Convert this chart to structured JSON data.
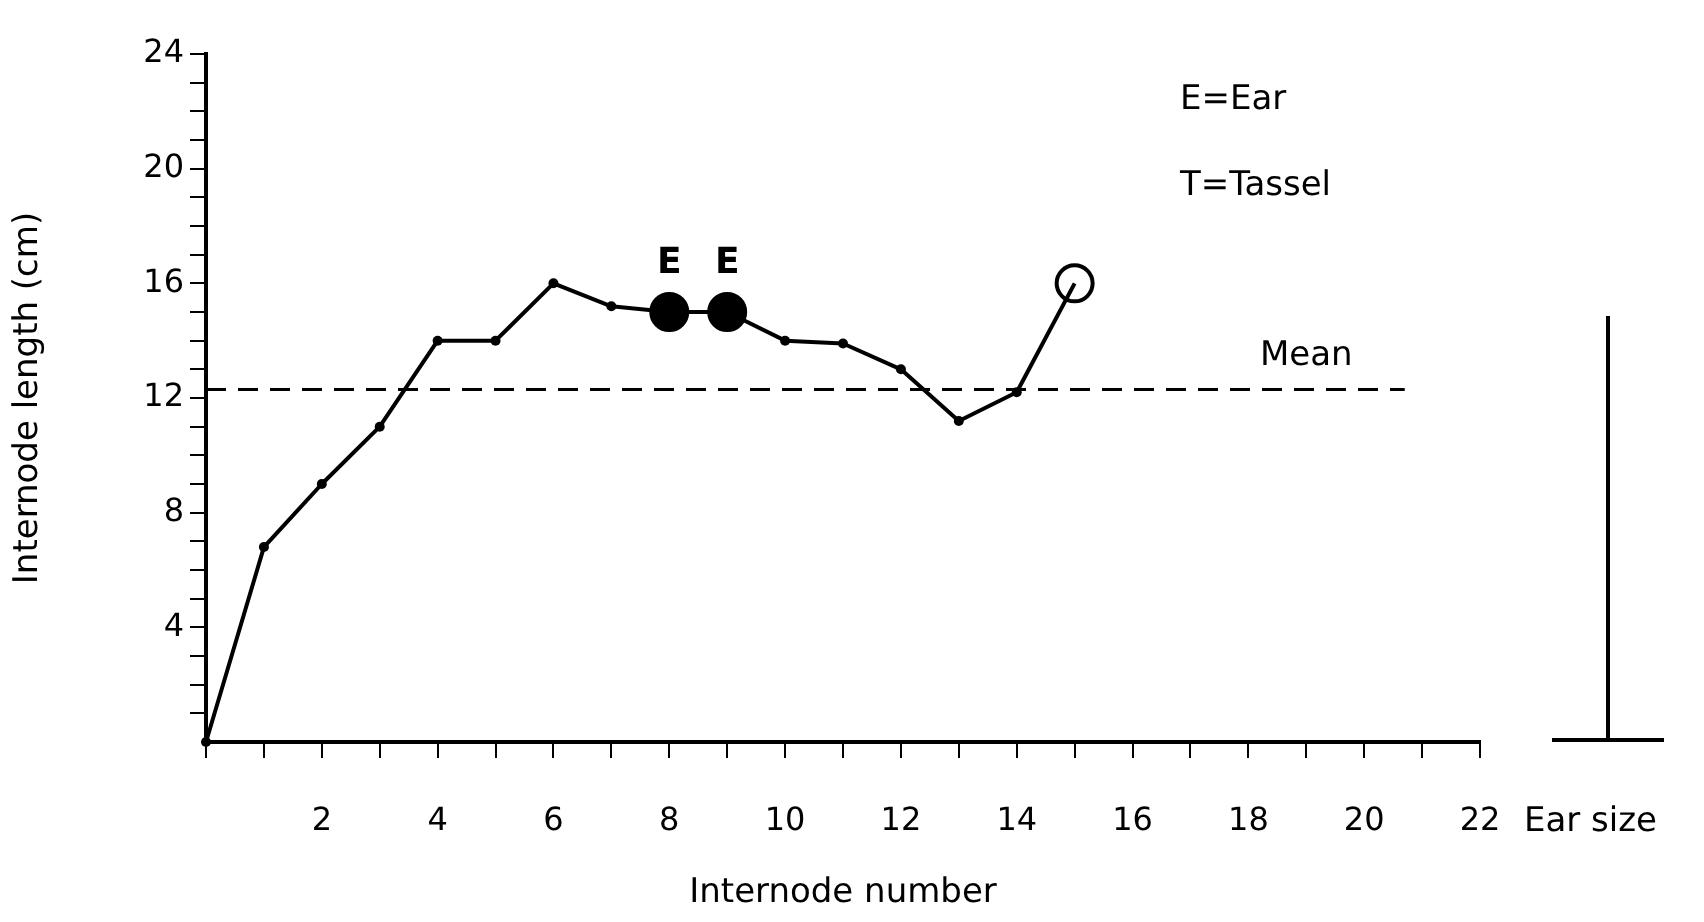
{
  "chart_data": {
    "type": "line",
    "xlabel": "Internode number",
    "ylabel": "Internode length (cm)",
    "xlim": [
      0,
      22
    ],
    "ylim": [
      0,
      24
    ],
    "xticks": [
      {
        "value": 0,
        "label": null
      },
      {
        "value": 1,
        "label": null
      },
      2,
      {
        "value": 3,
        "label": null
      },
      4,
      {
        "value": 5,
        "label": null
      },
      6,
      {
        "value": 7,
        "label": null
      },
      8,
      {
        "value": 9,
        "label": null
      },
      10,
      {
        "value": 11,
        "label": null
      },
      12,
      {
        "value": 13,
        "label": null
      },
      14,
      {
        "value": 15,
        "label": null
      },
      16,
      {
        "value": 17,
        "label": null
      },
      18,
      {
        "value": 19,
        "label": null
      },
      20,
      {
        "value": 21,
        "label": null
      },
      22
    ],
    "yticks": [
      {
        "value": 1,
        "label": null
      },
      {
        "value": 2,
        "label": null
      },
      {
        "value": 3,
        "label": null
      },
      4,
      {
        "value": 5,
        "label": null
      },
      {
        "value": 6,
        "label": null
      },
      {
        "value": 7,
        "label": null
      },
      8,
      {
        "value": 9,
        "label": null
      },
      {
        "value": 10,
        "label": null
      },
      {
        "value": 11,
        "label": null
      },
      12,
      {
        "value": 13,
        "label": null
      },
      {
        "value": 14,
        "label": null
      },
      {
        "value": 15,
        "label": null
      },
      16,
      {
        "value": 17,
        "label": null
      },
      {
        "value": 18,
        "label": null
      },
      {
        "value": 19,
        "label": null
      },
      20,
      {
        "value": 21,
        "label": null
      },
      {
        "value": 22,
        "label": null
      },
      {
        "value": 23,
        "label": null
      },
      24
    ],
    "series": [
      {
        "type": "line",
        "color": "#000000",
        "marker": "circle",
        "x": [
          0,
          1,
          2,
          3,
          4,
          5,
          6,
          7,
          8,
          9,
          10,
          11,
          12,
          13,
          14
        ],
        "values": [
          0,
          6.8,
          9,
          11,
          14,
          14,
          16,
          15.2,
          15,
          15,
          14,
          13.9,
          13,
          11.2,
          12.2
        ]
      },
      {
        "type": "line",
        "color": "#000000",
        "marker": "none",
        "x": [
          14,
          15
        ],
        "values": [
          12.2,
          16
        ]
      },
      {
        "type": "scatter",
        "color": "#000000",
        "marker": "circle",
        "x": [
          8,
          9
        ],
        "values": [
          15,
          15
        ]
      },
      {
        "type": "scatter",
        "color": "#ffffff",
        "marker": "circle",
        "x": [
          15
        ],
        "values": [
          16
        ]
      }
    ],
    "ref_lines": [
      {
        "axis": "y",
        "value": 12.3,
        "label": "Mean",
        "line_style": "dashed"
      }
    ],
    "annotations": [
      {
        "text": "E",
        "x": 8,
        "y": 15
      },
      {
        "text": "E",
        "x": 9,
        "y": 15
      },
      "E=Ear",
      "T=Tassel",
      "Ear size"
    ],
    "grid": false,
    "legend": false
  }
}
